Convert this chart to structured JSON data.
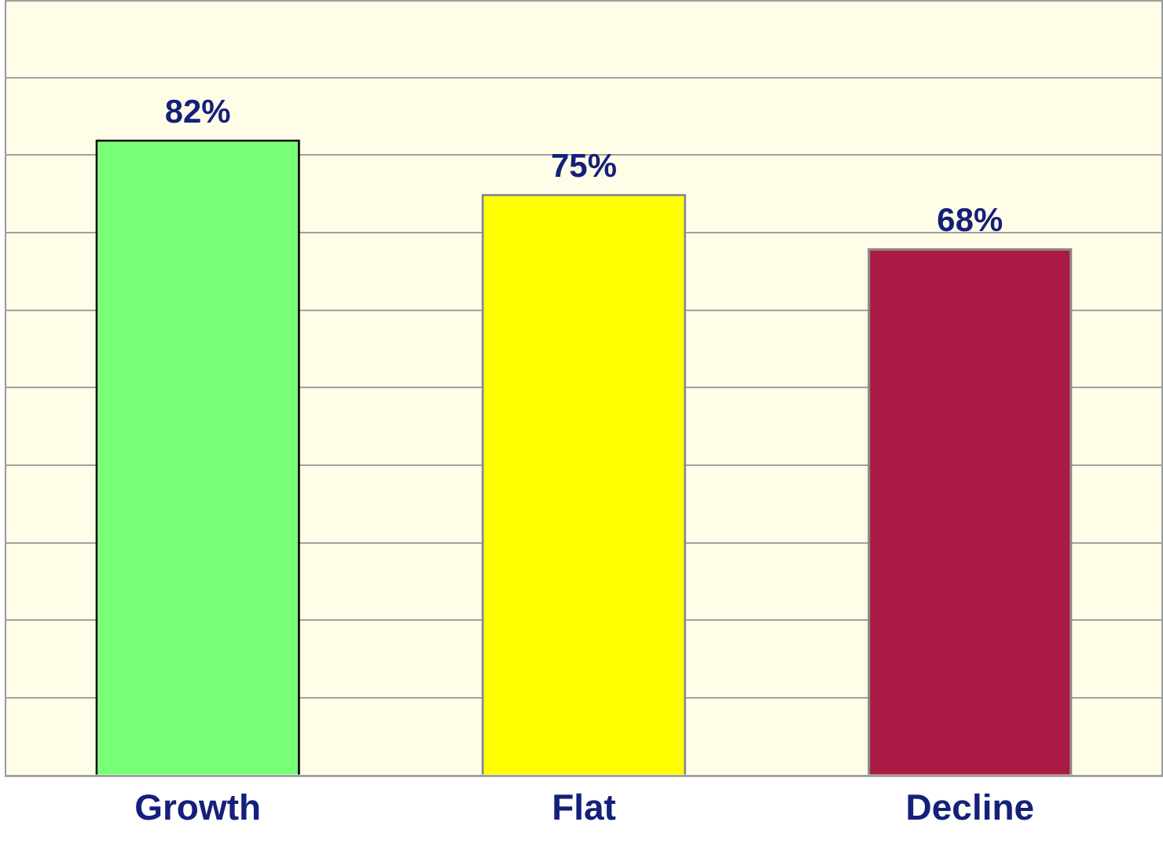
{
  "chart_data": {
    "type": "bar",
    "categories": [
      "Growth",
      "Flat",
      "Decline"
    ],
    "values": [
      82,
      75,
      68
    ],
    "colors": [
      "#77ff77",
      "#ffff00",
      "#aa1a44"
    ],
    "value_labels": [
      "82%",
      "75%",
      "68%"
    ],
    "ylim": [
      0,
      100
    ],
    "yticks": [
      {
        "value": 0,
        "label": null
      },
      {
        "value": 10,
        "label": null
      },
      {
        "value": 20,
        "label": null
      },
      {
        "value": 30,
        "label": null
      },
      {
        "value": 40,
        "label": null
      },
      {
        "value": 50,
        "label": null
      },
      {
        "value": 60,
        "label": null
      },
      {
        "value": 70,
        "label": null
      },
      {
        "value": 80,
        "label": null
      },
      {
        "value": 90,
        "label": null
      },
      {
        "value": 100,
        "label": null
      }
    ],
    "tick_labels": "x",
    "grid": "y",
    "legend": false
  }
}
